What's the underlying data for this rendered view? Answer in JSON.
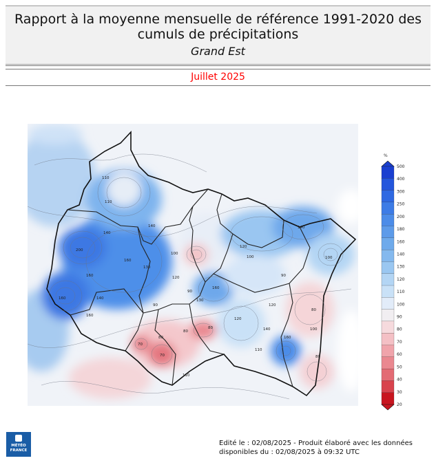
{
  "header": {
    "title_line1": "Rapport à la moyenne mensuelle de référence 1991-2020 des",
    "title_line2": "cumuls de précipitations",
    "region": "Grand Est"
  },
  "period": "Juillet 2025",
  "legend": {
    "unit": "%",
    "levels": [
      "500",
      "400",
      "300",
      "250",
      "200",
      "180",
      "160",
      "140",
      "130",
      "120",
      "110",
      "100",
      "90",
      "80",
      "70",
      "60",
      "50",
      "40",
      "30",
      "20"
    ],
    "colors": [
      "#1a3fd0",
      "#2456dc",
      "#2f69e2",
      "#3d7ce6",
      "#4c8ce8",
      "#5d9be9",
      "#6eaaeb",
      "#84b9ee",
      "#9ac7f1",
      "#b3d5f4",
      "#c9e1f7",
      "#e2ecf9",
      "#f1eef1",
      "#f6dadd",
      "#f4c0c5",
      "#f0a4ab",
      "#ea8890",
      "#e36b74",
      "#d8434d",
      "#c8151f"
    ],
    "label_color": "#222222"
  },
  "map": {
    "contour_labels": [
      "110",
      "110",
      "140",
      "140",
      "160",
      "200",
      "160",
      "160",
      "140",
      "130",
      "120",
      "100",
      "90",
      "90",
      "80",
      "80",
      "70",
      "80",
      "120",
      "100",
      "160",
      "130",
      "140",
      "100",
      "80",
      "90",
      "110",
      "160",
      "120",
      "120",
      "140",
      "100",
      "110",
      "160",
      "80",
      "70"
    ],
    "colors": {
      "border": "#111111",
      "outside": "#ffffff",
      "very_high": "#3b7ee6",
      "high": "#80b6ef",
      "moderate": "#c4def6",
      "normal": "#e9eef6",
      "low": "#f5d3d6",
      "very_low": "#e9747d"
    }
  },
  "logo": {
    "line1": "MÉTÉO",
    "line2": "FRANCE"
  },
  "footer": {
    "line1": "Edité le : 02/08/2025 - Produit élaboré avec les données",
    "line2": "disponibles du : 02/08/2025 à 09:32 UTC"
  }
}
